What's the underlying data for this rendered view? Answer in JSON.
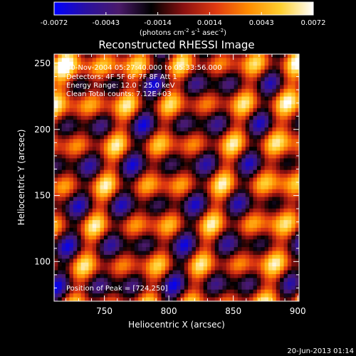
{
  "chart_data": {
    "type": "heatmap",
    "title": "Reconstructed RHESSI Image",
    "xlabel": "Heliocentric X (arcsec)",
    "ylabel": "Heliocentric Y (arcsec)",
    "xlim": [
      711,
      901
    ],
    "ylim": [
      70,
      257
    ],
    "x_ticks": [
      750,
      800,
      850,
      900
    ],
    "y_ticks": [
      100,
      150,
      200,
      250
    ],
    "colorbar": {
      "range": [
        -0.0072,
        0.0072
      ],
      "ticks": [
        "-0.0072",
        "-0.0043",
        "-0.0014",
        "0.0014",
        "0.0043",
        "0.0072"
      ],
      "unit_text": "(photons cm",
      "unit_sup1": "-2",
      "unit_mid": " s",
      "unit_sup2": "-1",
      "unit_mid2": " asec",
      "unit_sup3": "-2",
      "unit_end": ")",
      "colors": [
        "#0000ff",
        "#2a10a0",
        "#4a1a6a",
        "#000000",
        "#8a1010",
        "#e03a10",
        "#ff8c00",
        "#ffd030",
        "#ffffff"
      ]
    },
    "annotations": {
      "time_range": "30-Nov-2004 05:27:40.000 to 05:33:56.000",
      "detectors": "Detectors: 4F 5F 6F 7F 8F  Att 1",
      "energy": "Energy Range: 12.0 - 25.0 keV",
      "method": "Clean   Total counts: 7.12E+03",
      "peak": "Position of Peak = [724,250]"
    },
    "timestamp": "20-Jun-2013 01:14"
  }
}
